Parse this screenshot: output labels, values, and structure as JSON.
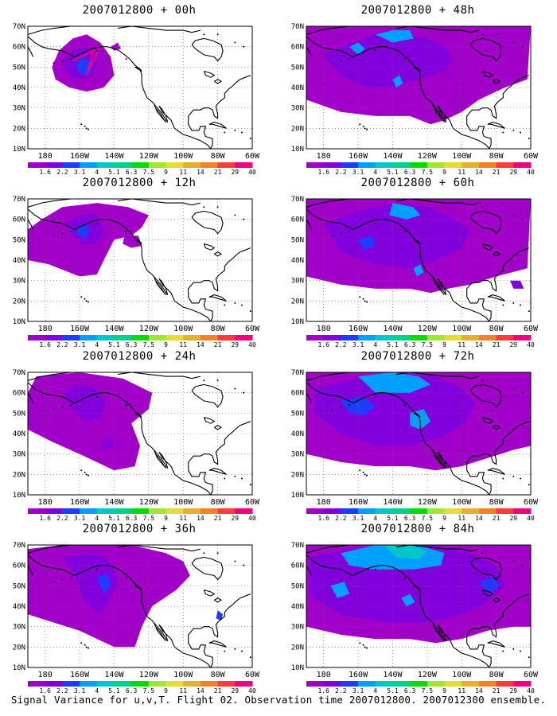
{
  "panels": [
    {
      "title": "2007012800 + 00h",
      "stage": 0
    },
    {
      "title": "2007012800 + 48h",
      "stage": 4
    },
    {
      "title": "2007012800 + 12h",
      "stage": 1
    },
    {
      "title": "2007012800 + 60h",
      "stage": 5
    },
    {
      "title": "2007012800 + 24h",
      "stage": 2
    },
    {
      "title": "2007012800 + 72h",
      "stage": 6
    },
    {
      "title": "2007012800 + 36h",
      "stage": 3
    },
    {
      "title": "2007012800 + 84h",
      "stage": 7
    }
  ],
  "axes": {
    "lat_ticks": [
      "70N",
      "60N",
      "50N",
      "40N",
      "30N",
      "20N",
      "10N"
    ],
    "lon_ticks": [
      "180",
      "160W",
      "140W",
      "120W",
      "100W",
      "80W",
      "60W"
    ]
  },
  "colorbar": {
    "labels": [
      "1.6",
      "2.2",
      "3.1",
      "4",
      "5.1",
      "6.3",
      "7.5",
      "9",
      "11",
      "14",
      "21",
      "29",
      "40"
    ],
    "colors": [
      "#a000c8",
      "#8200dc",
      "#1e3cff",
      "#00a0ff",
      "#00c8c8",
      "#00d28c",
      "#00dc00",
      "#a0e632",
      "#e6dc32",
      "#e6af2d",
      "#f08228",
      "#fa3c3c",
      "#f00082"
    ]
  },
  "footer": "Signal Variance for u,v,T. Flight 02. Observation time 2007012800. 2007012300 ensemble."
}
